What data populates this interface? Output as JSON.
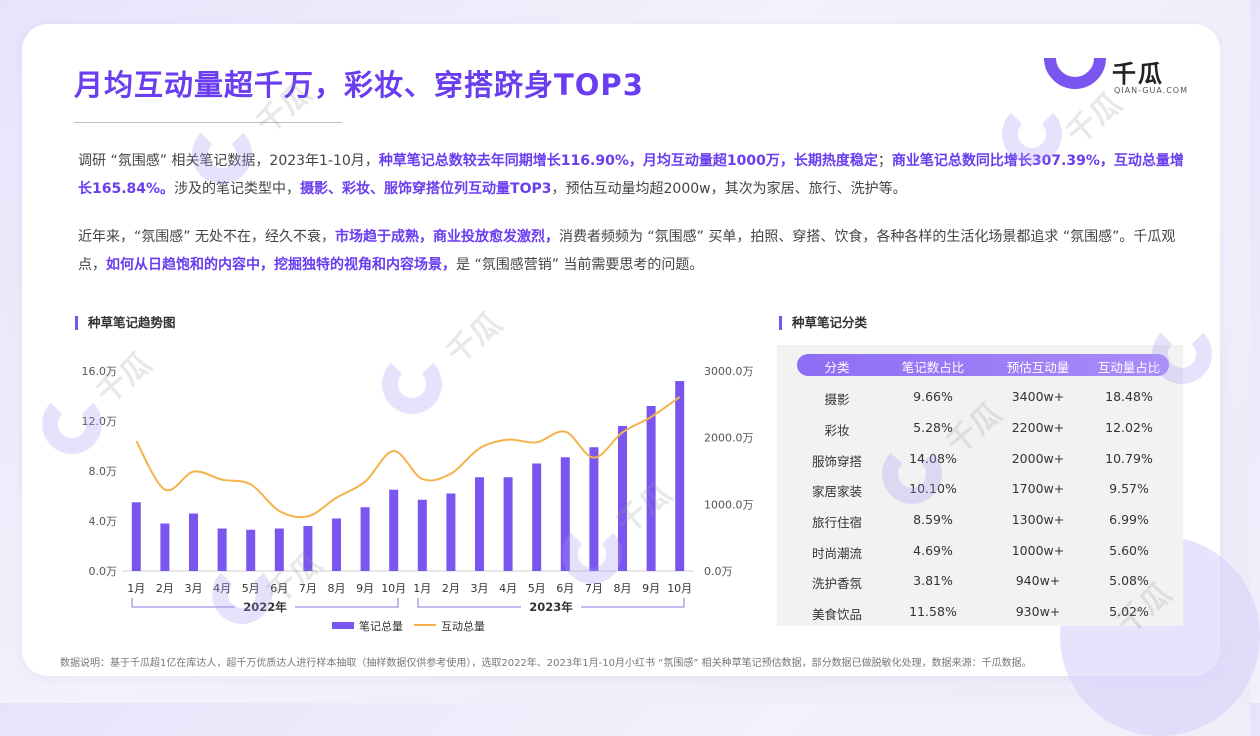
{
  "header": {
    "title": "月均互动量超千万，彩妆、穿搭跻身TOP3",
    "logo_cn": "千瓜",
    "logo_en": "QIAN-GUA.COM"
  },
  "paragraph1": {
    "s1": "调研 “氛围感” 相关笔记数据，2023年1-10月，",
    "h1": "种草笔记总数较去年同期增长116.90%，月均互动量超1000万，长期热度稳定",
    "s2": "；",
    "h2": "商业笔记总数同比增长307.39%，互动总量增长165.84%。",
    "s3": "涉及的笔记类型中，",
    "h3": "摄影、彩妆、服饰穿搭位列互动量TOP3",
    "s4": "，预估互动量均超2000w，其次为家居、旅行、洗护等。"
  },
  "paragraph2": {
    "s1": "近年来，“氛围感” 无处不在，经久不衰，",
    "h1": "市场趋于成熟，商业投放愈发激烈，",
    "s2": "消费者频频为 “氛围感” 买单，拍照、穿搭、饮食，各种各样的生活化场景都追求 “氛围感”。千瓜观点，",
    "h2": "如何从日趋饱和的内容中，挖掘独特的视角和内容场景，",
    "s3": "是 “氛围感营销” 当前需要思考的问题。"
  },
  "trend": {
    "section_title": "种草笔记趋势图"
  },
  "chart_data": {
    "type": "bar",
    "title": "种草笔记趋势图",
    "categories": [
      "1月",
      "2月",
      "3月",
      "4月",
      "5月",
      "6月",
      "7月",
      "8月",
      "9月",
      "10月",
      "1月",
      "2月",
      "3月",
      "4月",
      "5月",
      "6月",
      "7月",
      "8月",
      "9月",
      "10月"
    ],
    "groups": [
      {
        "label": "2022年",
        "from": 0,
        "to": 9
      },
      {
        "label": "2023年",
        "from": 10,
        "to": 19
      }
    ],
    "left_axis": {
      "ticks": [
        "0.0万",
        "4.0万",
        "8.0万",
        "12.0万",
        "16.0万"
      ],
      "range": [
        0,
        16
      ]
    },
    "right_axis": {
      "ticks": [
        "0.0万",
        "1000.0万",
        "2000.0万",
        "3000.0万"
      ],
      "range": [
        0,
        3000
      ]
    },
    "series": [
      {
        "name": "笔记总量",
        "kind": "bar",
        "axis": "left",
        "color": "#7b55f0",
        "values": [
          5.5,
          3.8,
          4.6,
          3.4,
          3.3,
          3.4,
          3.6,
          4.2,
          5.1,
          6.5,
          5.7,
          6.2,
          7.5,
          7.5,
          8.6,
          9.1,
          9.9,
          11.6,
          13.2,
          15.2
        ]
      },
      {
        "name": "互动总量",
        "kind": "line",
        "axis": "right",
        "color": "#f5b24a",
        "values": [
          1950,
          1220,
          1490,
          1370,
          1300,
          900,
          820,
          1100,
          1340,
          1800,
          1380,
          1460,
          1840,
          1970,
          1930,
          2090,
          1700,
          2080,
          2310,
          2610
        ]
      }
    ],
    "legend_position": "bottom"
  },
  "table": {
    "section_title": "种草笔记分类",
    "headers": [
      "分类",
      "笔记数占比",
      "预估互动量",
      "互动量占比"
    ],
    "rows": [
      [
        "摄影",
        "9.66%",
        "3400w+",
        "18.48%"
      ],
      [
        "彩妆",
        "5.28%",
        "2200w+",
        "12.02%"
      ],
      [
        "服饰穿搭",
        "14.08%",
        "2000w+",
        "10.79%"
      ],
      [
        "家居家装",
        "10.10%",
        "1700w+",
        "9.57%"
      ],
      [
        "旅行住宿",
        "8.59%",
        "1300w+",
        "6.99%"
      ],
      [
        "时尚潮流",
        "4.69%",
        "1000w+",
        "5.60%"
      ],
      [
        "洗护香氛",
        "3.81%",
        "940w+",
        "5.08%"
      ],
      [
        "美食饮品",
        "11.58%",
        "930w+",
        "5.02%"
      ]
    ]
  },
  "footnote": "数据说明：基于千瓜超1亿在库达人，超千万优质达人进行样本抽取（抽样数据仅供参考使用），选取2022年、2023年1月-10月小红书 “氛围感” 相关种草笔记预估数据，部分数据已做脱敏化处理，数据来源：千瓜数据。",
  "watermark": {
    "text": "千瓜",
    "sub": "QIAN-GUA.COM"
  },
  "colors": {
    "accent": "#6a3df0",
    "bar": "#7b55f0",
    "line": "#f5b24a"
  }
}
